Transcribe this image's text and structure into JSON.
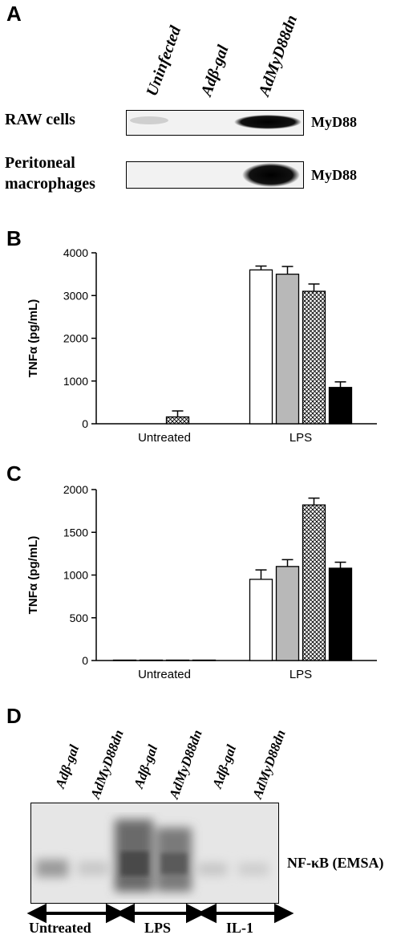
{
  "panelA": {
    "letter": "A",
    "lanes": [
      "Uninfected",
      "Adβ-gal",
      "AdMyD88dn"
    ],
    "rows": [
      {
        "label_line1": "RAW cells",
        "label_line2": "",
        "band": "MyD88"
      },
      {
        "label_line1": "Peritoneal",
        "label_line2": "macrophages",
        "band": "MyD88"
      }
    ]
  },
  "panelB": {
    "letter": "B",
    "chart_data": {
      "type": "bar",
      "ylabel": "TNFα (pg/mL)",
      "ylim": [
        0,
        4000
      ],
      "yticks": [
        0,
        1000,
        2000,
        3000,
        4000
      ],
      "categories": [
        "Untreated",
        "LPS"
      ],
      "series": [
        {
          "fill": "#ffffff",
          "values": [
            0,
            3600
          ],
          "errors": [
            0,
            90
          ]
        },
        {
          "fill": "#b8b8b8",
          "values": [
            0,
            3500
          ],
          "errors": [
            0,
            180
          ]
        },
        {
          "fill": "hatch",
          "values": [
            160,
            3100
          ],
          "errors": [
            140,
            170
          ]
        },
        {
          "fill": "#000000",
          "values": [
            0,
            850
          ],
          "errors": [
            0,
            130
          ]
        }
      ]
    }
  },
  "panelC": {
    "letter": "C",
    "chart_data": {
      "type": "bar",
      "ylabel": "TNFα (pg/mL)",
      "ylim": [
        0,
        2000
      ],
      "yticks": [
        0,
        500,
        1000,
        1500,
        2000
      ],
      "categories": [
        "Untreated",
        "LPS"
      ],
      "series": [
        {
          "fill": "#ffffff",
          "values": [
            5,
            950
          ],
          "errors": [
            0,
            110
          ]
        },
        {
          "fill": "#b8b8b8",
          "values": [
            5,
            1100
          ],
          "errors": [
            0,
            80
          ]
        },
        {
          "fill": "hatch",
          "values": [
            5,
            1820
          ],
          "errors": [
            0,
            80
          ]
        },
        {
          "fill": "#000000",
          "values": [
            5,
            1080
          ],
          "errors": [
            0,
            70
          ]
        }
      ]
    }
  },
  "panelD": {
    "letter": "D",
    "lanes": [
      "Adβ-gal",
      "AdMyD88dn",
      "Adβ-gal",
      "AdMyD88dn",
      "Adβ-gal",
      "AdMyD88dn"
    ],
    "band": "NF-κB (EMSA)",
    "groups": [
      "Untreated",
      "LPS",
      "IL-1"
    ]
  }
}
